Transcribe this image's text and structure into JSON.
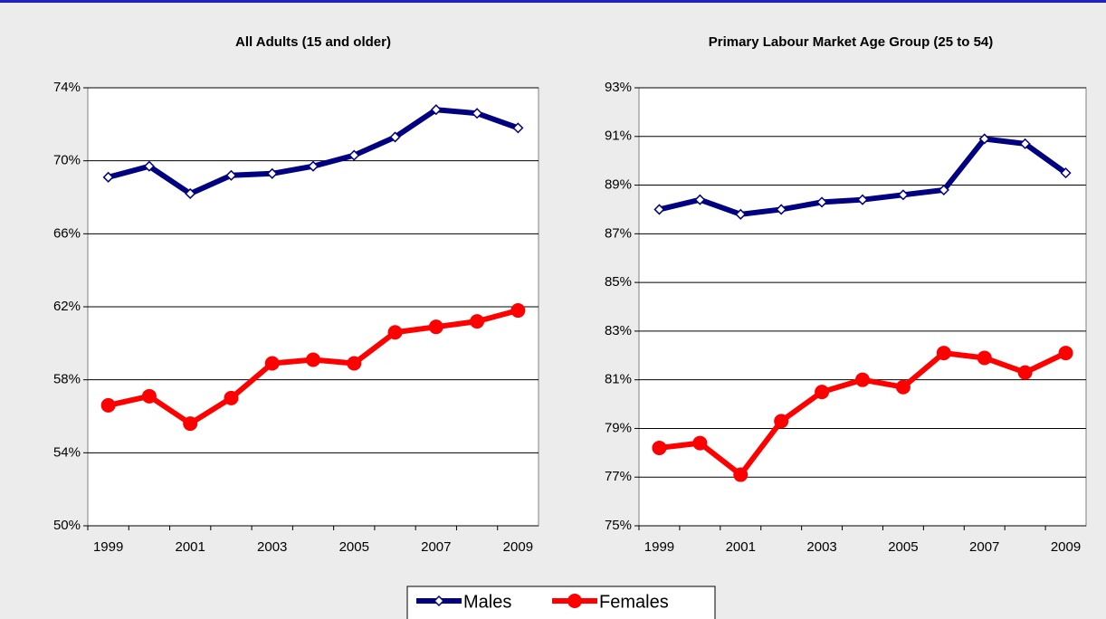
{
  "chart_data": [
    {
      "type": "line",
      "title": "All Adults (15 and older)",
      "categories": [
        "1999",
        null,
        "2001",
        null,
        "2003",
        null,
        "2005",
        null,
        "2007",
        null,
        "2009"
      ],
      "series": [
        {
          "name": "Males",
          "color": "#000080",
          "marker": "diamond",
          "values": [
            69.1,
            69.7,
            68.2,
            69.2,
            69.3,
            69.7,
            70.3,
            71.3,
            72.8,
            72.6,
            71.8
          ]
        },
        {
          "name": "Females",
          "color": "#ff0000",
          "marker": "circle",
          "values": [
            56.6,
            57.1,
            55.6,
            57.0,
            58.9,
            59.1,
            58.9,
            60.6,
            60.9,
            61.2,
            61.8
          ]
        }
      ],
      "ylim": [
        50,
        74
      ],
      "yticks": [
        {
          "value": 50,
          "label": "50%"
        },
        {
          "value": 54,
          "label": "54%"
        },
        {
          "value": 58,
          "label": "58%"
        },
        {
          "value": 62,
          "label": "62%"
        },
        {
          "value": 66,
          "label": "66%"
        },
        {
          "value": 70,
          "label": "70%"
        },
        {
          "value": 74,
          "label": "74%"
        }
      ],
      "grid": true
    },
    {
      "type": "line",
      "title": "Primary Labour Market Age Group (25 to 54)",
      "categories": [
        "1999",
        null,
        "2001",
        null,
        "2003",
        null,
        "2005",
        null,
        "2007",
        null,
        "2009"
      ],
      "series": [
        {
          "color": "#000080",
          "marker": "diamond",
          "values": [
            88.0,
            88.4,
            87.8,
            88.0,
            88.3,
            88.4,
            88.6,
            88.8,
            90.9,
            90.7,
            89.5
          ]
        },
        {
          "color": "#ff0000",
          "marker": "circle",
          "values": [
            78.2,
            78.4,
            77.1,
            79.3,
            80.5,
            81.0,
            80.7,
            82.1,
            81.9,
            81.3,
            82.1
          ]
        }
      ],
      "ylim": [
        75,
        93
      ],
      "yticks": [
        {
          "value": 75,
          "label": "75%"
        },
        {
          "value": 77,
          "label": "77%"
        },
        {
          "value": 79,
          "label": "79%"
        },
        {
          "value": 81,
          "label": "81%"
        },
        {
          "value": 83,
          "label": "83%"
        },
        {
          "value": 85,
          "label": "85%"
        },
        {
          "value": 87,
          "label": "87%"
        },
        {
          "value": 89,
          "label": "89%"
        },
        {
          "value": 91,
          "label": "91%"
        },
        {
          "value": 93,
          "label": "93%"
        }
      ],
      "grid": true
    }
  ]
}
